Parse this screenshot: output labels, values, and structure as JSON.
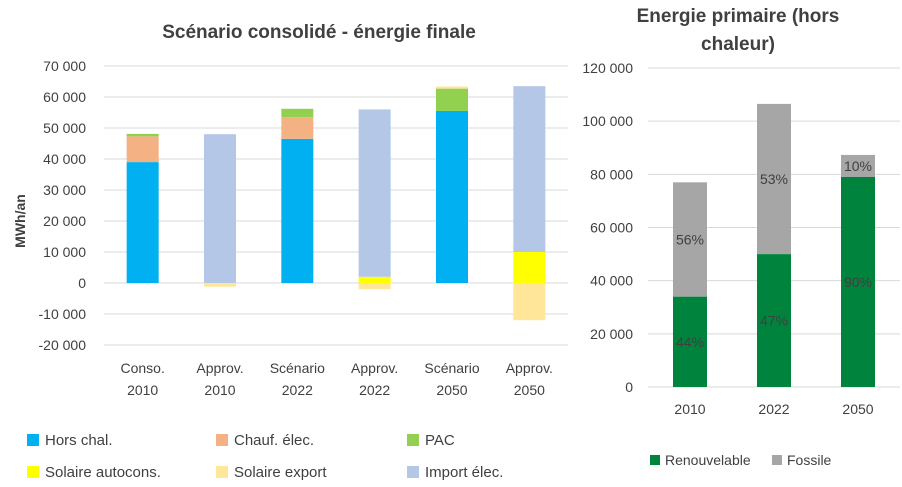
{
  "chart_data": [
    {
      "type": "bar",
      "stacked": true,
      "title": "Scénario consolidé - énergie finale",
      "ylabel": "MWh/an",
      "ylim": [
        -20000,
        70000
      ],
      "yticks": [
        -20000,
        -10000,
        0,
        10000,
        20000,
        30000,
        40000,
        50000,
        60000,
        70000
      ],
      "ytick_labels": [
        "-20 000",
        "-10 000",
        "0",
        "10 000",
        "20 000",
        "30 000",
        "40 000",
        "50 000",
        "60 000",
        "70 000"
      ],
      "grid": true,
      "legend_position": "bottom",
      "categories": [
        [
          "Conso.",
          "2010"
        ],
        [
          "Approv.",
          "2010"
        ],
        [
          "Scénario",
          "2022"
        ],
        [
          "Approv.",
          "2022"
        ],
        [
          "Scénario",
          "2050"
        ],
        [
          "Approv.",
          "2050"
        ]
      ],
      "series": [
        {
          "name": "Hors chal.",
          "color": "#00B0F0",
          "values": [
            39000,
            0,
            46500,
            0,
            55500,
            0
          ]
        },
        {
          "name": "Chauf. élec.",
          "color": "#F4B183",
          "values": [
            8300,
            0,
            7000,
            0,
            0,
            0
          ]
        },
        {
          "name": "PAC",
          "color": "#92D050",
          "values": [
            800,
            0,
            2700,
            0,
            7200,
            0
          ]
        },
        {
          "name": "Solaire autocons.",
          "color": "#FFFF00",
          "values": [
            0,
            0,
            0,
            2000,
            0,
            10000
          ]
        },
        {
          "name": "Solaire export",
          "color": "#FFE699",
          "values": [
            0,
            -1200,
            0,
            -2000,
            700,
            -12000
          ]
        },
        {
          "name": "Import élec.",
          "color": "#B4C7E7",
          "values": [
            0,
            48000,
            0,
            54000,
            0,
            53500
          ]
        }
      ]
    },
    {
      "type": "bar",
      "stacked": true,
      "title": "Energie primaire (hors chaleur)",
      "ylim": [
        0,
        120000
      ],
      "yticks": [
        0,
        20000,
        40000,
        60000,
        80000,
        100000,
        120000
      ],
      "ytick_labels": [
        "0",
        "20 000",
        "40 000",
        "60 000",
        "80 000",
        "100 000",
        "120 000"
      ],
      "grid": true,
      "legend_position": "bottom",
      "categories": [
        "2010",
        "2022",
        "2050"
      ],
      "series": [
        {
          "name": "Renouvelable",
          "color": "#00843D",
          "values": [
            34000,
            50000,
            79000
          ],
          "labels": [
            "44%",
            "47%",
            "90%"
          ]
        },
        {
          "name": "Fossile",
          "color": "#A6A6A6",
          "values": [
            43000,
            56500,
            8300
          ],
          "labels": [
            "56%",
            "53%",
            "10%"
          ]
        }
      ]
    }
  ]
}
